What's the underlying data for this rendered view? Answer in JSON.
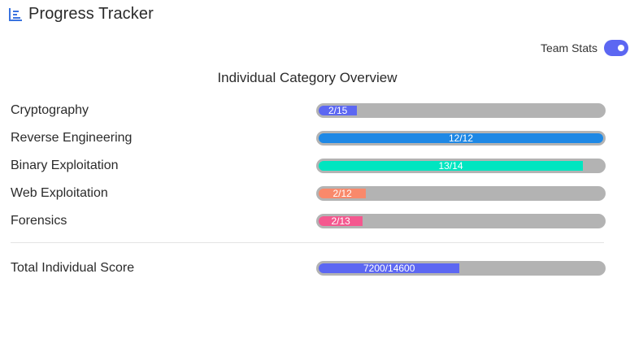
{
  "header": {
    "title": "Progress Tracker",
    "icon": "bar-list-icon",
    "icon_color": "#3a73e0"
  },
  "team_toggle": {
    "label": "Team Stats",
    "on": true,
    "color": "#5c67f2"
  },
  "section_title": "Individual Category Overview",
  "categories": [
    {
      "label": "Cryptography",
      "done": 2,
      "total": 15,
      "text": "2/15",
      "color": "#5c67f2"
    },
    {
      "label": "Reverse Engineering",
      "done": 12,
      "total": 12,
      "text": "12/12",
      "color": "#1e88e5"
    },
    {
      "label": "Binary Exploitation",
      "done": 13,
      "total": 14,
      "text": "13/14",
      "color": "#00e5c0"
    },
    {
      "label": "Web Exploitation",
      "done": 2,
      "total": 12,
      "text": "2/12",
      "color": "#f9896b"
    },
    {
      "label": "Forensics",
      "done": 2,
      "total": 13,
      "text": "2/13",
      "color": "#f4588f"
    }
  ],
  "total": {
    "label": "Total Individual Score",
    "done": 7200,
    "total": 14600,
    "text": "7200/14600",
    "color": "#5c67f2"
  },
  "track_color": "#b3b3b3"
}
